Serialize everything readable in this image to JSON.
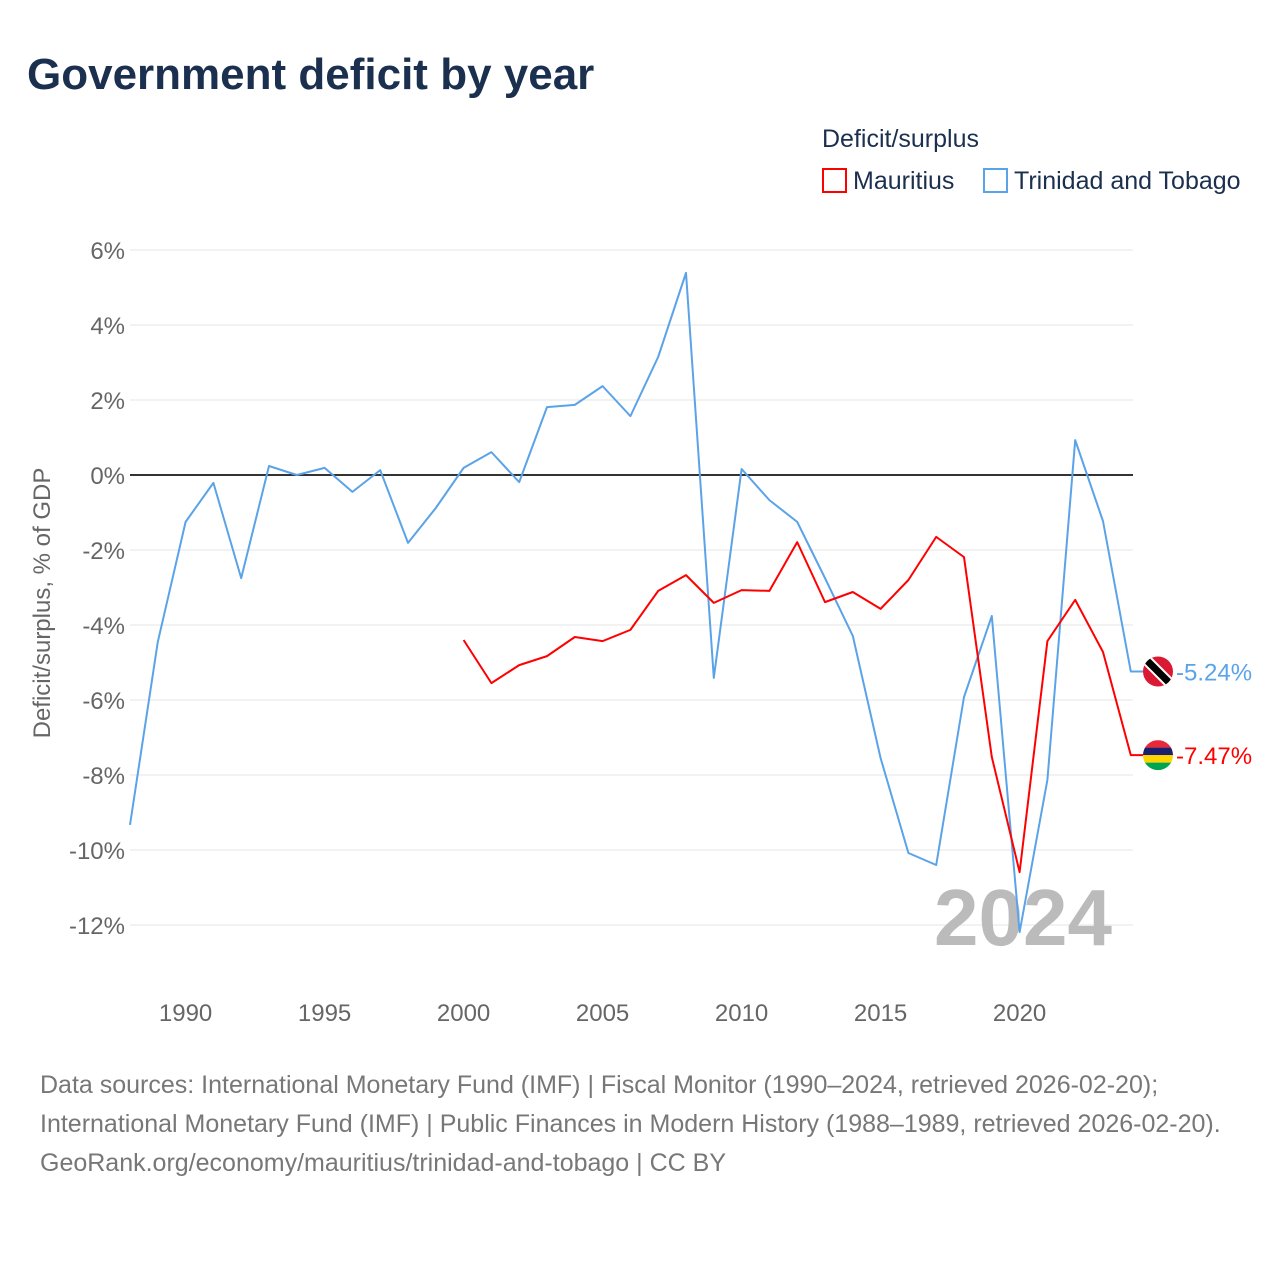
{
  "title": "Government deficit by year",
  "chart_data": {
    "type": "line",
    "title": "Government deficit by year",
    "ylabel": "Deficit/surplus, % of GDP",
    "xlabel": "",
    "xlim": [
      1988,
      2024
    ],
    "ylim": [
      -13,
      6.5
    ],
    "x_ticks": [
      1990,
      1995,
      2000,
      2005,
      2010,
      2015,
      2020
    ],
    "x_tick_labels": [
      "1990",
      "1995",
      "2000",
      "2005",
      "2010",
      "2015",
      "2020"
    ],
    "y_ticks": [
      6,
      4,
      2,
      0,
      -2,
      -4,
      -6,
      -8,
      -10,
      -12
    ],
    "y_tick_labels": [
      "6%",
      "4%",
      "2%",
      "0%",
      "-2%",
      "-4%",
      "-6%",
      "-8%",
      "-10%",
      "-12%"
    ],
    "grid": true,
    "legend": {
      "title": "Deficit/surplus",
      "position": "top-right"
    },
    "year_watermark": "2024",
    "series": [
      {
        "name": "Mauritius",
        "color": "#ff0000",
        "end_label": "-7.47%",
        "flag": "mauritius-flag",
        "x": [
          2000,
          2001,
          2002,
          2003,
          2004,
          2005,
          2006,
          2007,
          2008,
          2009,
          2010,
          2011,
          2012,
          2013,
          2014,
          2015,
          2016,
          2017,
          2018,
          2019,
          2020,
          2021,
          2022,
          2023,
          2024
        ],
        "values": [
          -4.4,
          -5.55,
          -5.07,
          -4.83,
          -4.32,
          -4.43,
          -4.13,
          -3.09,
          -2.67,
          -3.41,
          -3.07,
          -3.09,
          -1.79,
          -3.39,
          -3.12,
          -3.57,
          -2.8,
          -1.65,
          -2.19,
          -7.52,
          -10.59,
          -4.43,
          -3.33,
          -4.72,
          -7.47
        ]
      },
      {
        "name": "Trinidad and Tobago",
        "color": "#5ba3e8",
        "end_label": "-5.24%",
        "flag": "trinidad-flag",
        "x": [
          1988,
          1989,
          1990,
          1991,
          1992,
          1993,
          1994,
          1995,
          1996,
          1997,
          1998,
          1999,
          2000,
          2001,
          2002,
          2003,
          2004,
          2005,
          2006,
          2007,
          2008,
          2009,
          2010,
          2011,
          2012,
          2013,
          2014,
          2015,
          2016,
          2017,
          2018,
          2019,
          2020,
          2021,
          2022,
          2023,
          2024
        ],
        "values": [
          -9.33,
          -4.45,
          -1.25,
          -0.21,
          -2.75,
          0.24,
          0.0,
          0.19,
          -0.45,
          0.13,
          -1.81,
          -0.88,
          0.19,
          0.61,
          -0.19,
          1.81,
          1.87,
          2.37,
          1.57,
          3.15,
          5.39,
          -5.41,
          0.16,
          -0.67,
          -1.25,
          -2.75,
          -4.29,
          -7.55,
          -10.08,
          -10.4,
          -5.92,
          -3.76,
          -12.19,
          -8.13,
          0.93,
          -1.23,
          -5.24
        ]
      }
    ]
  },
  "footer": {
    "sources": "Data sources: International Monetary Fund (IMF) | Fiscal Monitor (1990–2024, retrieved 2026-02-20); International Monetary Fund (IMF) | Public Finances in Modern History (1988–1989, retrieved 2026-02-20).",
    "link": "GeoRank.org/economy/mauritius/trinidad-and-tobago",
    "license": " | CC BY"
  }
}
